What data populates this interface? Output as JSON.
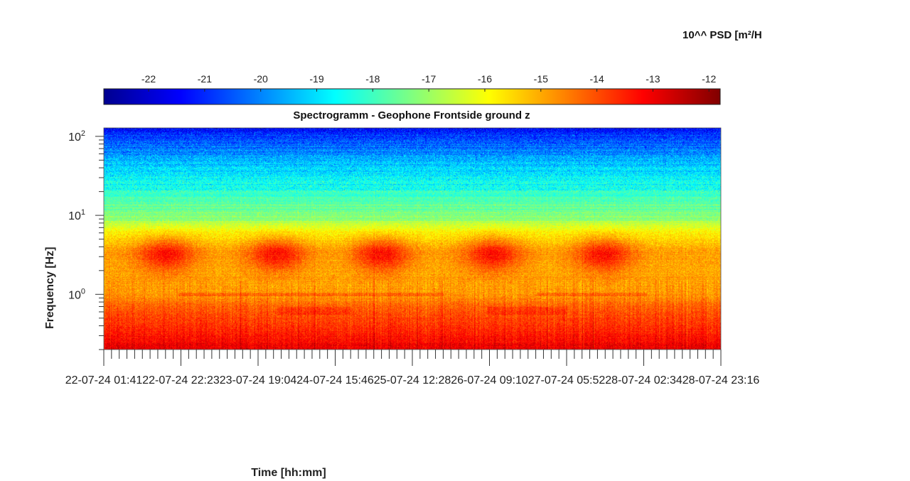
{
  "chart_data": {
    "type": "heatmap",
    "title": "Spectrogramm - Geophone Frontside ground z",
    "xlabel": "Time [hh:mm]",
    "ylabel": "Frequency [Hz]",
    "colorbar_label": "10^^ PSD [m²/H",
    "colorbar_ticks": [
      -22,
      -21,
      -20,
      -19,
      -18,
      -17,
      -16,
      -15,
      -14,
      -13,
      -12
    ],
    "colorbar_range": [
      -22.8,
      -11.8
    ],
    "colormap": "jet",
    "y_scale": "log",
    "y_range_hz": [
      0.2,
      128
    ],
    "y_ticks": [
      {
        "value": 1,
        "base": "10",
        "exp": "0"
      },
      {
        "value": 10,
        "base": "10",
        "exp": "1"
      },
      {
        "value": 100,
        "base": "10",
        "exp": "2"
      }
    ],
    "x_ticks": [
      "22-07-24 01:41",
      "22-07-24 22:23",
      "23-07-24 19:04",
      "24-07-24 15:46",
      "25-07-24 12:28",
      "26-07-24 09:10",
      "27-07-24 05:52",
      "28-07-24 02:34",
      "28-07-24 23:16"
    ],
    "psd_profile_log10": [
      {
        "f": 0.2,
        "v": -12.9
      },
      {
        "f": 0.3,
        "v": -13.4
      },
      {
        "f": 0.5,
        "v": -13.9
      },
      {
        "f": 0.7,
        "v": -14.2
      },
      {
        "f": 1.0,
        "v": -14.8
      },
      {
        "f": 2.0,
        "v": -15.0
      },
      {
        "f": 3.5,
        "v": -14.9
      },
      {
        "f": 6.0,
        "v": -15.8
      },
      {
        "f": 10,
        "v": -17.3
      },
      {
        "f": 20,
        "v": -18.2
      },
      {
        "f": 50,
        "v": -19.5
      },
      {
        "f": 100,
        "v": -20.8
      },
      {
        "f": 128,
        "v": -21.4
      }
    ],
    "daily_activity_fraction_peaks": [
      0.1,
      0.28,
      0.45,
      0.63,
      0.81
    ]
  }
}
